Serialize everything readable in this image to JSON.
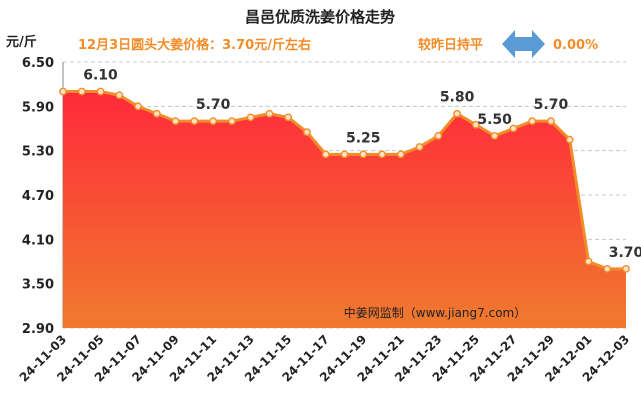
{
  "chart_data": {
    "type": "area",
    "title": "昌邑优质洗姜价格走势",
    "subtitle": "12月3日圆头大姜价格：3.70元/斤左右",
    "change_label": "较昨日持平",
    "change_value": "0.00%",
    "ylabel": "元/斤",
    "watermark": "中姜网监制（www.jiang7.com）",
    "ylim": [
      2.9,
      6.5
    ],
    "yticks": [
      6.5,
      5.9,
      5.3,
      4.7,
      4.1,
      3.5,
      2.9
    ],
    "ytick_labels": [
      "6.50",
      "5.90",
      "5.30",
      "4.70",
      "4.10",
      "3.50",
      "2.90"
    ],
    "x": [
      "24-11-03",
      "24-11-04",
      "24-11-05",
      "24-11-06",
      "24-11-07",
      "24-11-08",
      "24-11-09",
      "24-11-10",
      "24-11-11",
      "24-11-12",
      "24-11-13",
      "24-11-14",
      "24-11-15",
      "24-11-16",
      "24-11-17",
      "24-11-18",
      "24-11-19",
      "24-11-20",
      "24-11-21",
      "24-11-22",
      "24-11-23",
      "24-11-24",
      "24-11-25",
      "24-11-26",
      "24-11-27",
      "24-11-28",
      "24-11-29",
      "24-11-30",
      "24-12-01",
      "24-12-02",
      "24-12-03"
    ],
    "xtick_labels": [
      "24-11-03",
      "24-11-05",
      "24-11-07",
      "24-11-09",
      "24-11-11",
      "24-11-13",
      "24-11-15",
      "24-11-17",
      "24-11-19",
      "24-11-21",
      "24-11-23",
      "24-11-25",
      "24-11-27",
      "24-11-29",
      "24-12-01",
      "24-12-03"
    ],
    "values": [
      6.1,
      6.1,
      6.1,
      6.05,
      5.9,
      5.8,
      5.7,
      5.7,
      5.7,
      5.7,
      5.75,
      5.8,
      5.75,
      5.55,
      5.25,
      5.25,
      5.25,
      5.25,
      5.25,
      5.35,
      5.5,
      5.8,
      5.65,
      5.5,
      5.6,
      5.7,
      5.7,
      5.45,
      3.8,
      3.7,
      3.7
    ],
    "data_labels": [
      {
        "x": "24-11-05",
        "text": "6.10"
      },
      {
        "x": "24-11-11",
        "text": "5.70"
      },
      {
        "x": "24-11-19",
        "text": "5.25"
      },
      {
        "x": "24-11-24",
        "text": "5.80"
      },
      {
        "x": "24-11-26",
        "text": "5.50"
      },
      {
        "x": "24-11-29",
        "text": "5.70"
      },
      {
        "x": "24-12-03",
        "text": "3.70"
      }
    ],
    "grid": true,
    "colors": {
      "line": "#f28c28",
      "marker_fill": "#fde3c4",
      "area_top": "#ff2a3a",
      "area_bottom": "#f07a2e",
      "subtitle": "#f28c28",
      "arrow": "#5b9bd5",
      "label": "#333333"
    }
  }
}
